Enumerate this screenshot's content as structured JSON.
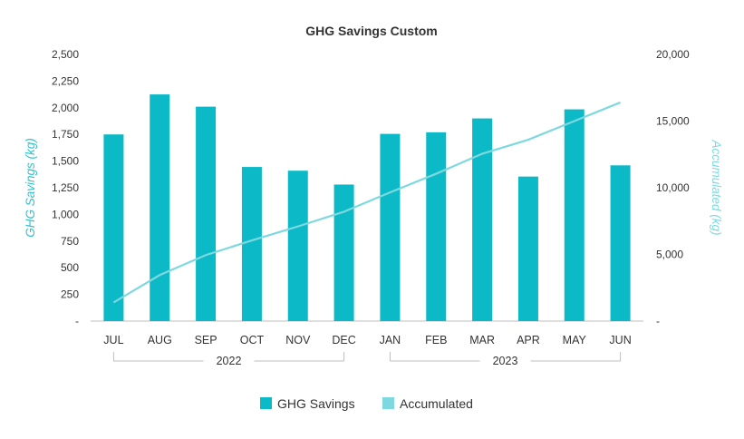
{
  "chart_data": {
    "type": "bar",
    "title": "GHG Savings Custom",
    "ylabel": "GHG Savings (kg)",
    "y2label": "Accumulated (kg)",
    "categories": [
      "JUL",
      "AUG",
      "SEP",
      "OCT",
      "NOV",
      "DEC",
      "JAN",
      "FEB",
      "MAR",
      "APR",
      "MAY",
      "JUN"
    ],
    "year_groups": [
      {
        "label": "2022",
        "start": 0,
        "end": 5
      },
      {
        "label": "2023",
        "start": 6,
        "end": 11
      }
    ],
    "ylim": [
      0,
      2500
    ],
    "y2lim": [
      0,
      20000
    ],
    "yticks": [
      "-",
      "250",
      "500",
      "750",
      "1,000",
      "1,250",
      "1,500",
      "1,750",
      "2,000",
      "2,250",
      "2,500"
    ],
    "y2ticks": [
      "-",
      "5,000",
      "10,000",
      "15,000",
      "20,000"
    ],
    "series": [
      {
        "name": "GHG Savings",
        "type": "bar",
        "axis": "left",
        "color": "#0bbac6",
        "values": [
          1750,
          2125,
          2010,
          1445,
          1410,
          1280,
          1755,
          1770,
          1900,
          1355,
          1985,
          1460
        ]
      },
      {
        "name": "Accumulated",
        "type": "line",
        "axis": "right",
        "color": "#7dd9df",
        "values": [
          1400,
          3450,
          4950,
          6050,
          7100,
          8200,
          9650,
          11050,
          12550,
          13600,
          15000,
          16400
        ]
      }
    ],
    "legend": "bottom",
    "grid": false
  },
  "colors": {
    "bar": "#0bbac6",
    "line": "#7dd9df",
    "axis_title": "#2bc2cc",
    "tick_text": "#333333",
    "axis_line": "#bfbfbf"
  }
}
